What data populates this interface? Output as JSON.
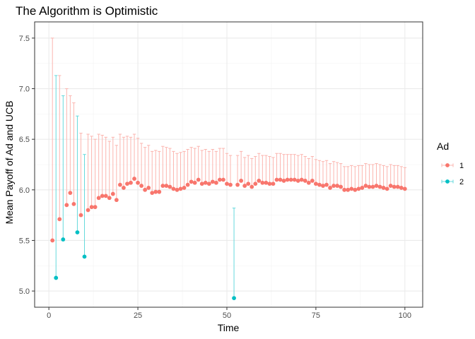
{
  "chart_data": {
    "type": "scatter",
    "title": "The Algorithm is Optimistic",
    "xlabel": "Time",
    "ylabel": "Mean Payoff of Ad and UCB",
    "xlim": [
      -4,
      105
    ],
    "ylim": [
      4.84,
      7.66
    ],
    "x_ticks": [
      0,
      25,
      50,
      75,
      100
    ],
    "x_tick_labels": [
      "0",
      "25",
      "50",
      "75",
      "100"
    ],
    "y_ticks": [
      5.0,
      5.5,
      6.0,
      6.5,
      7.0,
      7.5
    ],
    "y_tick_labels": [
      "5.0",
      "5.5",
      "6.0",
      "6.5",
      "7.0",
      "7.5"
    ],
    "grid": true,
    "legend": {
      "title": "Ad",
      "position": "right"
    },
    "series": [
      {
        "name": "1",
        "color": "#F8766D",
        "x": [
          1,
          3,
          5,
          6,
          7,
          9,
          11,
          12,
          13,
          14,
          15,
          16,
          17,
          18,
          19,
          20,
          21,
          22,
          23,
          24,
          25,
          26,
          27,
          28,
          29,
          30,
          31,
          32,
          33,
          34,
          35,
          36,
          37,
          38,
          39,
          40,
          41,
          42,
          43,
          44,
          45,
          46,
          47,
          48,
          49,
          50,
          51,
          53,
          54,
          55,
          56,
          57,
          58,
          59,
          60,
          61,
          62,
          63,
          64,
          65,
          66,
          67,
          68,
          69,
          70,
          71,
          72,
          73,
          74,
          75,
          76,
          77,
          78,
          79,
          80,
          81,
          82,
          83,
          84,
          85,
          86,
          87,
          88,
          89,
          90,
          91,
          92,
          93,
          94,
          95,
          96,
          97,
          98,
          99,
          100
        ],
        "mean": [
          5.5,
          5.71,
          5.85,
          5.97,
          5.86,
          5.75,
          5.8,
          5.83,
          5.83,
          5.92,
          5.94,
          5.94,
          5.92,
          5.96,
          5.9,
          6.05,
          6.02,
          6.06,
          6.07,
          6.11,
          6.07,
          6.04,
          6.0,
          6.02,
          5.97,
          5.98,
          5.98,
          6.04,
          6.04,
          6.03,
          6.01,
          6.0,
          6.01,
          6.02,
          6.05,
          6.08,
          6.07,
          6.1,
          6.06,
          6.07,
          6.06,
          6.08,
          6.07,
          6.1,
          6.1,
          6.06,
          6.05,
          6.05,
          6.09,
          6.04,
          6.06,
          6.03,
          6.06,
          6.09,
          6.07,
          6.07,
          6.06,
          6.06,
          6.1,
          6.1,
          6.09,
          6.1,
          6.1,
          6.1,
          6.09,
          6.1,
          6.09,
          6.07,
          6.09,
          6.06,
          6.05,
          6.04,
          6.05,
          6.02,
          6.04,
          6.04,
          6.03,
          6.0,
          6.0,
          6.01,
          6.0,
          6.01,
          6.02,
          6.04,
          6.03,
          6.03,
          6.04,
          6.03,
          6.02,
          6.01,
          6.04,
          6.03,
          6.03,
          6.02,
          6.01
        ],
        "upper": [
          7.5,
          7.13,
          7.0,
          6.93,
          6.86,
          6.56,
          6.55,
          6.53,
          6.5,
          6.55,
          6.54,
          6.52,
          6.48,
          6.52,
          6.44,
          6.55,
          6.52,
          6.53,
          6.52,
          6.55,
          6.51,
          6.46,
          6.42,
          6.44,
          6.38,
          6.39,
          6.38,
          6.43,
          6.42,
          6.41,
          6.38,
          6.36,
          6.37,
          6.38,
          6.4,
          6.42,
          6.41,
          6.43,
          6.39,
          6.4,
          6.38,
          6.4,
          6.38,
          6.41,
          6.41,
          6.36,
          6.34,
          6.34,
          6.38,
          6.32,
          6.34,
          6.31,
          6.33,
          6.36,
          6.34,
          6.34,
          6.33,
          6.32,
          6.36,
          6.36,
          6.35,
          6.35,
          6.35,
          6.35,
          6.34,
          6.35,
          6.33,
          6.31,
          6.33,
          6.3,
          6.29,
          6.28,
          6.29,
          6.26,
          6.28,
          6.27,
          6.26,
          6.23,
          6.23,
          6.24,
          6.23,
          6.24,
          6.24,
          6.26,
          6.25,
          6.25,
          6.26,
          6.25,
          6.24,
          6.23,
          6.25,
          6.24,
          6.24,
          6.23,
          6.22
        ]
      },
      {
        "name": "2",
        "color": "#00BFC4",
        "x": [
          2,
          4,
          8,
          10,
          52
        ],
        "mean": [
          5.13,
          5.51,
          5.58,
          5.34,
          4.93
        ],
        "upper": [
          7.13,
          6.93,
          6.73,
          6.35,
          5.82
        ]
      }
    ]
  }
}
